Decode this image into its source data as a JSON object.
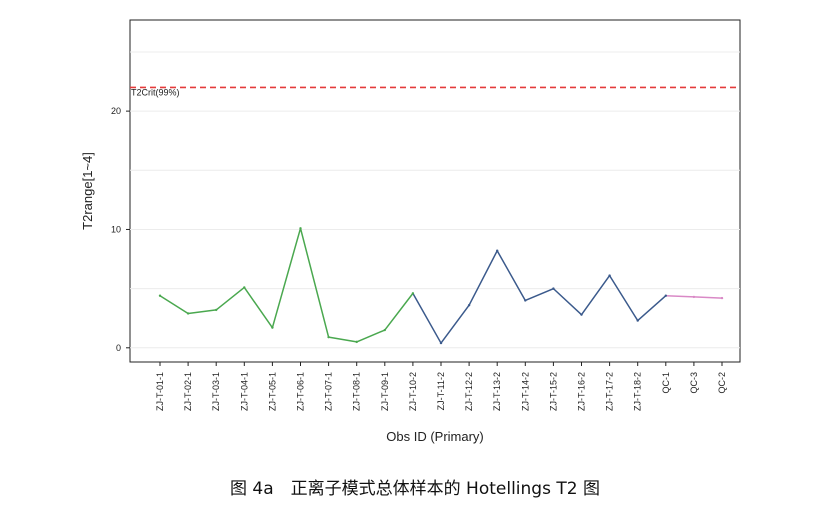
{
  "chart_data": {
    "type": "line",
    "title": "",
    "xlabel": "Obs ID (Primary)",
    "ylabel": "T2range[1~4]",
    "ylim": [
      -1.2,
      27.7
    ],
    "yticks": [
      0,
      10,
      20
    ],
    "grid": true,
    "categories": [
      "ZJ-T-01-1",
      "ZJ-T-02-1",
      "ZJ-T-03-1",
      "ZJ-T-04-1",
      "ZJ-T-05-1",
      "ZJ-T-06-1",
      "ZJ-T-07-1",
      "ZJ-T-08-1",
      "ZJ-T-09-1",
      "ZJ-T-10-2",
      "ZJ-T-11-2",
      "ZJ-T-12-2",
      "ZJ-T-13-2",
      "ZJ-T-14-2",
      "ZJ-T-15-2",
      "ZJ-T-16-2",
      "ZJ-T-17-2",
      "ZJ-T-18-2",
      "QC-1",
      "QC-3",
      "QC-2"
    ],
    "values": [
      4.4,
      2.9,
      3.2,
      5.1,
      1.7,
      10.1,
      0.9,
      0.5,
      1.5,
      4.6,
      0.4,
      3.6,
      8.2,
      4.0,
      5.0,
      2.8,
      6.1,
      2.3,
      4.4,
      4.3,
      4.2
    ],
    "series_colors": [
      {
        "from": 0,
        "to": 9,
        "color": "#4aa84f"
      },
      {
        "from": 9,
        "to": 18,
        "color": "#3b5a8c"
      },
      {
        "from": 18,
        "to": 20,
        "color": "#d989c6"
      }
    ],
    "critical_line": {
      "label": "T2Crit(99%)",
      "value": 22.0,
      "color": "#e53b3b"
    }
  },
  "caption": "图 4a　正离子模式总体样本的 Hotellings T2  图"
}
